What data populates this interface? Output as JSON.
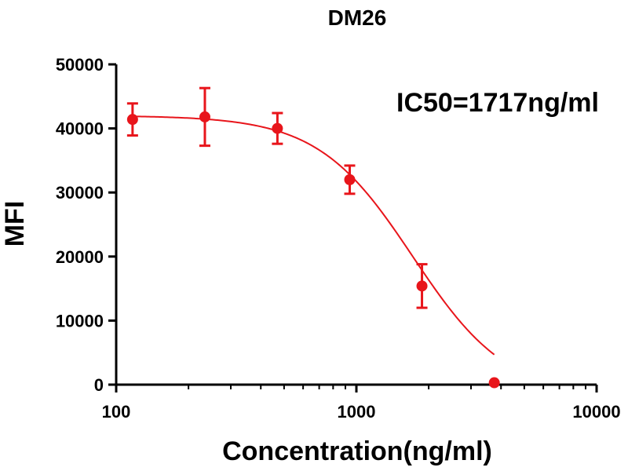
{
  "chart_data": {
    "type": "scatter",
    "title": "DM26",
    "xlabel": "Concentration(ng/ml)",
    "ylabel": "MFI",
    "x_scale": "log",
    "xlim": [
      100,
      10000
    ],
    "ylim": [
      0,
      50000
    ],
    "x_ticks": [
      100,
      1000,
      10000
    ],
    "x_tick_labels": [
      "100",
      "1000",
      "10000"
    ],
    "y_ticks": [
      0,
      10000,
      20000,
      30000,
      40000,
      50000
    ],
    "y_tick_labels": [
      "0",
      "10000",
      "20000",
      "30000",
      "40000",
      "50000"
    ],
    "series": [
      {
        "color": "#e8151b",
        "points": [
          {
            "x": 117,
            "y": 41400,
            "err": 2500
          },
          {
            "x": 234,
            "y": 41800,
            "err": 4500
          },
          {
            "x": 469,
            "y": 40000,
            "err": 2400
          },
          {
            "x": 938,
            "y": 32000,
            "err": 2200
          },
          {
            "x": 1875,
            "y": 15400,
            "err": 3400
          },
          {
            "x": 3750,
            "y": 300,
            "err": 0
          }
        ],
        "fit": {
          "model": "four-parameter-logistic",
          "top": 42000,
          "bottom": -2000,
          "ic50": 1717,
          "hill": 2.2
        }
      }
    ],
    "annotation": "IC50=1717ng/ml"
  }
}
